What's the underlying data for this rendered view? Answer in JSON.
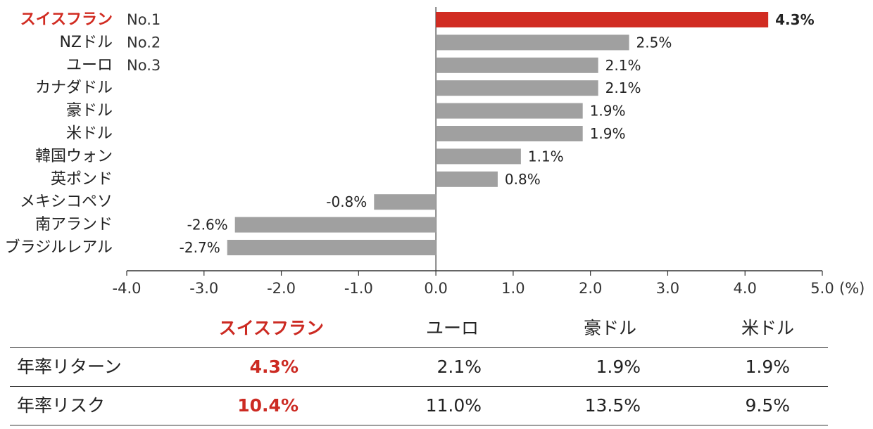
{
  "chart_data": {
    "type": "bar",
    "orientation": "horizontal",
    "unit_label": "(%)",
    "highlight_color": "#d12c22",
    "bar_color": "#a0a0a0",
    "xlim": [
      -4.0,
      5.0
    ],
    "xticks": [
      "-4.0",
      "-3.0",
      "-2.0",
      "-1.0",
      "0.0",
      "1.0",
      "2.0",
      "3.0",
      "4.0",
      "5.0"
    ],
    "categories": [
      "スイスフラン",
      "NZドル",
      "ユーロ",
      "カナダドル",
      "豪ドル",
      "米ドル",
      "韓国ウォン",
      "英ポンド",
      "メキシコペソ",
      "南アランド",
      "ブラジルレアル"
    ],
    "values": [
      4.3,
      2.5,
      2.1,
      2.1,
      1.9,
      1.9,
      1.1,
      0.8,
      -0.8,
      -2.6,
      -2.7
    ],
    "value_labels": [
      "4.3%",
      "2.5%",
      "2.1%",
      "2.1%",
      "1.9%",
      "1.9%",
      "1.1%",
      "0.8%",
      "-0.8%",
      "-2.6%",
      "-2.7%"
    ],
    "ranks": [
      "No.1",
      "No.2",
      "No.3",
      "",
      "",
      "",
      "",
      "",
      "",
      "",
      ""
    ],
    "highlight_index": 0
  },
  "table": {
    "headers": [
      "スイスフラン",
      "ユーロ",
      "豪ドル",
      "米ドル"
    ],
    "rows": [
      {
        "label": "年率リターン",
        "values": [
          "4.3%",
          "2.1%",
          "1.9%",
          "1.9%"
        ]
      },
      {
        "label": "年率リスク",
        "values": [
          "10.4%",
          "11.0%",
          "13.5%",
          "9.5%"
        ]
      }
    ]
  }
}
